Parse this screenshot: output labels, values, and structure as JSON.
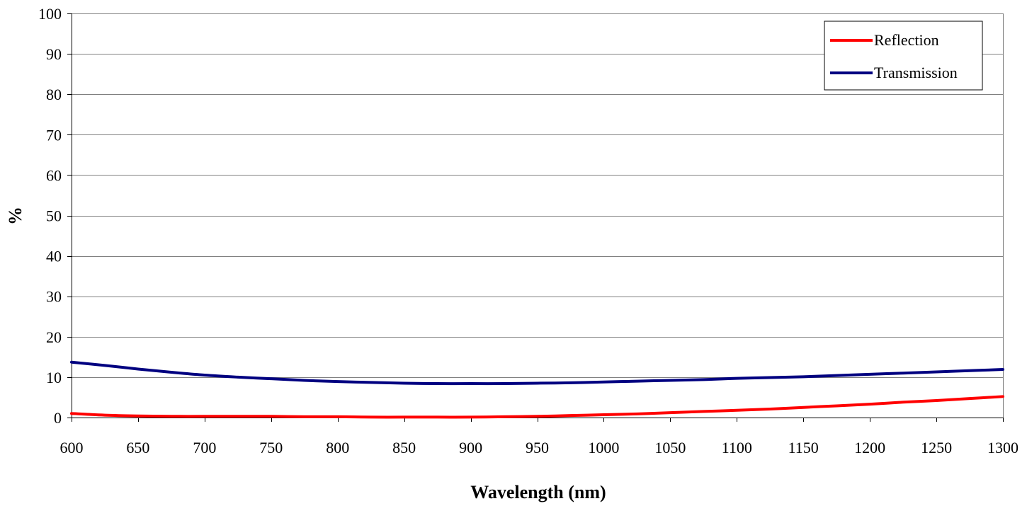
{
  "chart_data": {
    "type": "line",
    "title": "",
    "xlabel": "Wavelength (nm)",
    "ylabel": "%",
    "xlim": [
      600,
      1300
    ],
    "ylim": [
      0,
      100
    ],
    "x_ticks": [
      600,
      650,
      700,
      750,
      800,
      850,
      900,
      950,
      1000,
      1050,
      1100,
      1150,
      1200,
      1250,
      1300
    ],
    "y_ticks": [
      0,
      10,
      20,
      30,
      40,
      50,
      60,
      70,
      80,
      90,
      100
    ],
    "grid": "horizontal",
    "legend_position": "top-right",
    "x": [
      600,
      625,
      650,
      675,
      700,
      725,
      750,
      775,
      800,
      825,
      850,
      875,
      900,
      925,
      950,
      975,
      1000,
      1025,
      1050,
      1075,
      1100,
      1125,
      1150,
      1175,
      1200,
      1225,
      1250,
      1275,
      1300
    ],
    "series": [
      {
        "name": "Reflection",
        "color": "#ff0000",
        "values": [
          1.0,
          0.6,
          0.4,
          0.3,
          0.3,
          0.3,
          0.3,
          0.2,
          0.2,
          0.1,
          0.1,
          0.1,
          0.1,
          0.2,
          0.3,
          0.5,
          0.7,
          0.9,
          1.2,
          1.5,
          1.8,
          2.1,
          2.5,
          2.9,
          3.3,
          3.8,
          4.2,
          4.7,
          5.2
        ]
      },
      {
        "name": "Transmission",
        "color": "#000080",
        "values": [
          13.7,
          12.9,
          12.0,
          11.2,
          10.5,
          10.0,
          9.6,
          9.2,
          8.9,
          8.7,
          8.5,
          8.4,
          8.4,
          8.4,
          8.5,
          8.6,
          8.8,
          9.0,
          9.2,
          9.4,
          9.7,
          9.9,
          10.1,
          10.4,
          10.7,
          11.0,
          11.3,
          11.6,
          11.9
        ]
      }
    ]
  }
}
